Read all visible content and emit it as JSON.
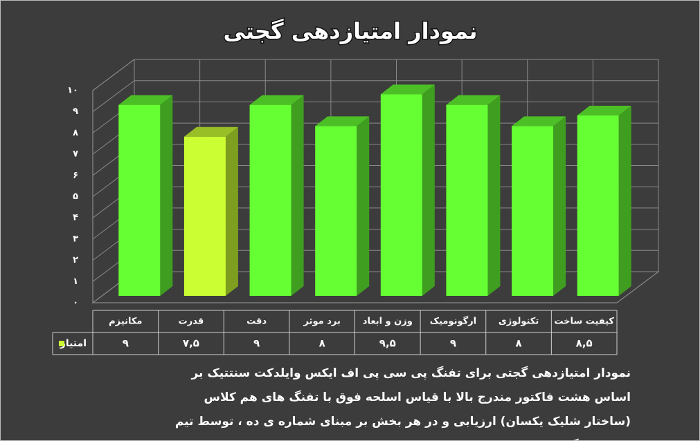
{
  "chart_data": {
    "type": "bar3d",
    "title": "نمودار امتیازدهی گجتی",
    "categories": [
      "مکانیزم",
      "قدرت",
      "دقت",
      "برد موثر",
      "وزن و ابعاد",
      "ارگونومیک",
      "تکنولوژی",
      "کیفیت ساخت"
    ],
    "series": [
      {
        "name": "امتیاز",
        "color": "#ccff33",
        "colors": [
          "#66ff33",
          "#ccff33",
          "#66ff33",
          "#66ff33",
          "#66ff33",
          "#66ff33",
          "#66ff33",
          "#66ff33"
        ],
        "values": [
          9,
          7.5,
          9,
          8,
          9.5,
          9,
          8,
          8.5
        ],
        "value_labels": [
          "۹",
          "۷,۵",
          "۹",
          "۸",
          "۹,۵",
          "۹",
          "۸",
          "۸,۵"
        ]
      }
    ],
    "ylim": [
      0,
      10
    ],
    "yticks": [
      {
        "value": 0,
        "label": "٠"
      },
      {
        "value": 1,
        "label": "۱"
      },
      {
        "value": 2,
        "label": "۲"
      },
      {
        "value": 3,
        "label": "۳"
      },
      {
        "value": 4,
        "label": "۴"
      },
      {
        "value": 5,
        "label": "۵"
      },
      {
        "value": 6,
        "label": "۶"
      },
      {
        "value": 7,
        "label": "۷"
      },
      {
        "value": 8,
        "label": "۸"
      },
      {
        "value": 9,
        "label": "۹"
      },
      {
        "value": 10,
        "label": "۱۰"
      }
    ],
    "grid": true,
    "caption": "نمودار امتیازدهی گجتی برای تفنگ  پی سی پی اف ایکس وایلدکت سنتتیک بر اساس هشت فاکتور مندرج بالا با قیاس اسلحه فوق با تفنگ های هم کلاس (ساختار شلیک یکسان) ارزیابی و در هر بخش بر مبنای شماره ی ده ، توسط تیم تخصصی گجتی امتیاز دهی شده است."
  }
}
